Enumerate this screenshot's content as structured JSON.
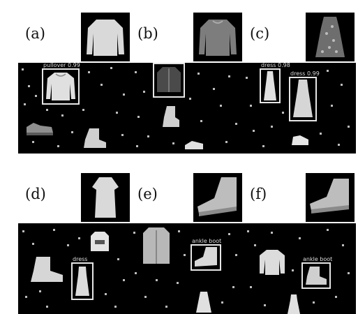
{
  "panels": [
    {
      "label": "(a)",
      "query_icon": "pullover-icon",
      "boxes": [
        {
          "text": "pullover 0.99"
        }
      ],
      "items": [
        "pullover-icon",
        "sneaker-icon",
        "ankle-boot-icon"
      ]
    },
    {
      "label": "(b)",
      "query_icon": "pullover-icon",
      "boxes": [
        {
          "text": ""
        }
      ],
      "items": [
        "coat-icon",
        "ankle-boot-icon",
        "sneaker-icon"
      ]
    },
    {
      "label": "(c)",
      "query_icon": "dress-icon",
      "boxes": [
        {
          "text": "dress 0.98"
        },
        {
          "text": "dress 0.99"
        }
      ],
      "items": [
        "dress-icon",
        "dress-icon",
        "sneaker-icon"
      ]
    },
    {
      "label": "(d)",
      "query_icon": "dress-icon",
      "boxes": [
        {
          "text": "dress"
        }
      ],
      "items": [
        "pullover-icon",
        "ankle-boot-icon",
        "dress-icon"
      ]
    },
    {
      "label": "(e)",
      "query_icon": "ankle-boot-icon",
      "boxes": [
        {
          "text": "ankle boot"
        }
      ],
      "items": [
        "coat-icon",
        "ankle-boot-icon",
        "dress-icon"
      ]
    },
    {
      "label": "(f)",
      "query_icon": "ankle-boot-icon",
      "boxes": [
        {
          "text": "ankle boot"
        }
      ],
      "items": [
        "pullover-icon",
        "ankle-boot-icon",
        "dress-icon"
      ]
    }
  ]
}
